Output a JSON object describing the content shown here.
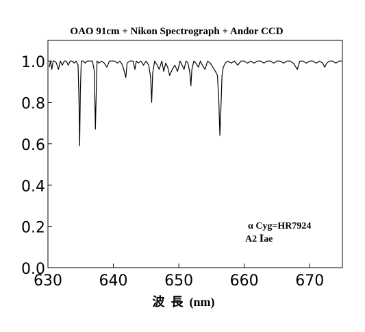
{
  "chart_data": {
    "type": "line",
    "title": "OAO 91cm + Nikon Spectrograph + Andor CCD",
    "xlabel": "波  長  (nm)",
    "ylabel": "",
    "xlim": [
      630,
      675
    ],
    "ylim": [
      0.0,
      1.1
    ],
    "xticks": [
      630,
      640,
      650,
      660,
      670
    ],
    "yticks": [
      0.0,
      0.2,
      0.4,
      0.6,
      0.8,
      1.0
    ],
    "xtick_labels": [
      "630",
      "640",
      "650",
      "660",
      "670"
    ],
    "ytick_labels": [
      "0.0",
      "0.2",
      "0.4",
      "0.6",
      "0.8",
      "1.0"
    ],
    "grid": false,
    "annotations": [
      "α Cyg=HR7924",
      "A2 Ⅰae"
    ],
    "series": [
      {
        "color": "#000000",
        "x": [
          630.2,
          630.4,
          630.6,
          630.8,
          631.0,
          631.3,
          631.6,
          631.9,
          632.2,
          632.5,
          632.8,
          633.1,
          633.4,
          633.7,
          634.0,
          634.3,
          634.6,
          634.75,
          634.85,
          634.95,
          635.1,
          635.4,
          635.7,
          636.0,
          636.4,
          636.8,
          637.1,
          637.25,
          637.35,
          637.5,
          637.8,
          638.2,
          638.6,
          639.0,
          639.4,
          639.8,
          640.2,
          640.6,
          641.0,
          641.4,
          641.75,
          641.9,
          642.1,
          642.5,
          643.0,
          643.3,
          643.5,
          643.8,
          644.2,
          644.6,
          645.0,
          645.4,
          645.7,
          645.85,
          646.0,
          646.3,
          646.7,
          647.0,
          647.4,
          647.7,
          648.0,
          648.3,
          648.6,
          649.0,
          649.4,
          649.8,
          650.2,
          650.5,
          650.8,
          651.1,
          651.4,
          651.7,
          651.85,
          652.0,
          652.3,
          652.6,
          653.0,
          653.3,
          653.6,
          654.0,
          654.4,
          654.8,
          655.2,
          655.6,
          655.9,
          656.1,
          656.28,
          656.45,
          656.6,
          656.8,
          657.1,
          657.5,
          658.0,
          658.5,
          659.0,
          659.5,
          660.0,
          660.5,
          661.0,
          661.5,
          662.0,
          662.5,
          663.0,
          663.5,
          664.0,
          664.5,
          665.0,
          665.5,
          666.0,
          666.5,
          667.0,
          667.5,
          667.9,
          668.1,
          668.5,
          669.0,
          669.5,
          670.0,
          670.5,
          671.0,
          671.5,
          672.0,
          672.3,
          672.6,
          673.0,
          673.5,
          674.0,
          674.5,
          674.9
        ],
        "y": [
          0.97,
          1.0,
          0.96,
          1.0,
          1.0,
          0.99,
          0.96,
          1.0,
          0.98,
          1.0,
          1.0,
          0.98,
          1.0,
          1.0,
          0.99,
          1.0,
          0.98,
          0.8,
          0.59,
          0.85,
          1.0,
          1.0,
          0.99,
          1.0,
          1.0,
          1.0,
          0.95,
          0.67,
          0.8,
          1.0,
          0.99,
          1.0,
          0.99,
          0.97,
          1.0,
          1.0,
          1.0,
          0.99,
          1.0,
          0.98,
          0.94,
          0.92,
          0.99,
          1.0,
          1.0,
          0.96,
          1.0,
          0.99,
          1.0,
          0.98,
          1.0,
          0.98,
          0.92,
          0.8,
          0.94,
          1.0,
          0.98,
          0.96,
          1.0,
          0.95,
          0.99,
          0.97,
          0.93,
          0.96,
          0.98,
          0.95,
          1.0,
          0.98,
          0.96,
          1.0,
          0.99,
          0.94,
          0.88,
          0.96,
          1.0,
          0.99,
          0.97,
          1.0,
          0.98,
          0.96,
          1.0,
          0.99,
          0.97,
          0.95,
          0.93,
          0.82,
          0.64,
          0.78,
          0.93,
          0.97,
          0.99,
          1.0,
          0.99,
          1.0,
          0.98,
          1.0,
          1.0,
          0.99,
          1.0,
          0.99,
          1.0,
          1.0,
          0.99,
          1.0,
          1.0,
          0.99,
          1.0,
          1.0,
          0.99,
          1.0,
          1.0,
          0.99,
          0.97,
          0.96,
          1.0,
          1.0,
          0.99,
          1.0,
          1.0,
          0.99,
          1.0,
          0.99,
          0.97,
          0.99,
          1.0,
          1.0,
          0.99,
          1.0,
          1.0
        ]
      }
    ]
  }
}
